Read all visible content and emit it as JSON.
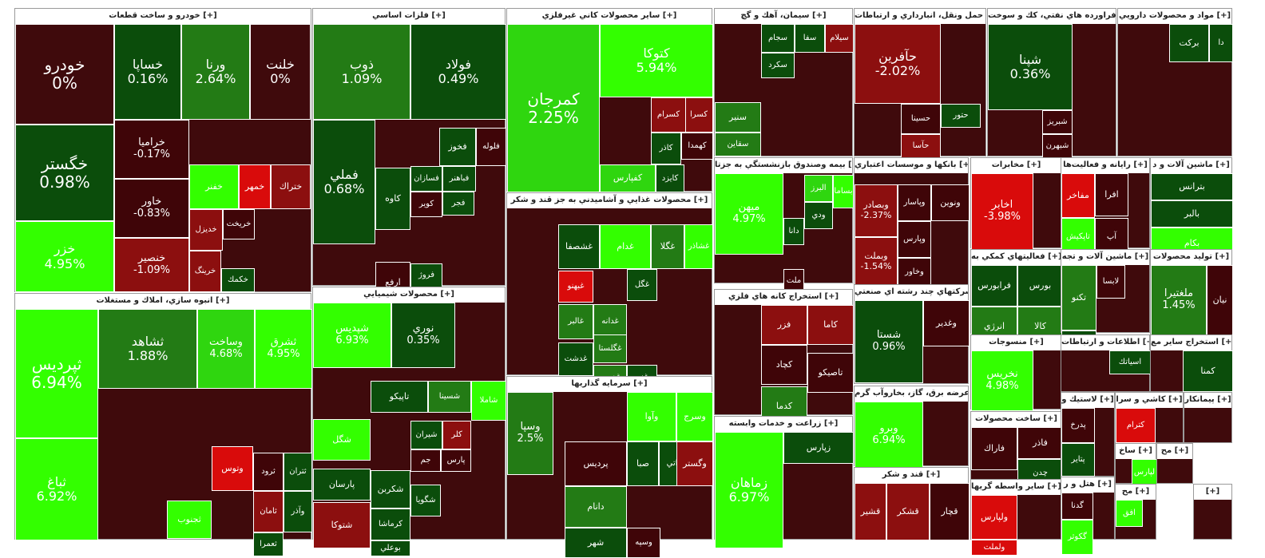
{
  "colors": {
    "neg_strong": "#d90b0b",
    "neg_mid": "#8c0f0f",
    "neg_dark": "#3f0508",
    "flat": "#3f0a0c",
    "pos_dark": "#0b4d0b",
    "pos_mid": "#237b15",
    "pos_light": "#2fd60f",
    "pos_bright": "#33ff00"
  },
  "sectors": [
    {
      "name": "خودرو و ساخت قطعات [+]",
      "tiles": [
        {
          "s": "خودرو",
          "c": "0%",
          "col": "flat"
        },
        {
          "s": "خگستر",
          "c": "0.98%",
          "col": "pos_dark"
        },
        {
          "s": "خزر",
          "c": "4.95%",
          "col": "pos_bright"
        },
        {
          "s": "خساپا",
          "c": "0.16%",
          "col": "pos_dark"
        },
        {
          "s": "ورنا",
          "c": "2.64%",
          "col": "pos_mid"
        },
        {
          "s": "خلنت",
          "c": "0%",
          "col": "flat"
        },
        {
          "s": "خراميا",
          "c": "-0.17%",
          "col": "neg_dark"
        },
        {
          "s": "خاور",
          "c": "-0.83%",
          "col": "neg_dark"
        },
        {
          "s": "خنصير",
          "c": "-1.09%",
          "col": "neg_mid"
        },
        {
          "s": "خفنر",
          "c": "",
          "col": "pos_bright"
        },
        {
          "s": "خمهر",
          "c": "",
          "col": "neg_strong"
        },
        {
          "s": "ختراك",
          "c": "",
          "col": "neg_mid"
        },
        {
          "s": "خديزل",
          "c": "",
          "col": "neg_mid"
        },
        {
          "s": "خريخت",
          "c": "",
          "col": "neg_dark"
        },
        {
          "s": "خرينگ",
          "c": "",
          "col": "neg_mid"
        },
        {
          "s": "خكمك",
          "c": "",
          "col": "pos_dark"
        }
      ]
    },
    {
      "name": "فلزات اساسي [+]",
      "tiles": [
        {
          "s": "ذوب",
          "c": "1.09%",
          "col": "pos_mid"
        },
        {
          "s": "فولاد",
          "c": "0.49%",
          "col": "pos_dark"
        },
        {
          "s": "فملي",
          "c": "0.68%",
          "col": "pos_dark"
        },
        {
          "s": "كاوه",
          "c": "",
          "col": "pos_dark"
        },
        {
          "s": "فخوز",
          "c": "",
          "col": "pos_dark"
        },
        {
          "s": "فلوله",
          "c": "",
          "col": "neg_dark"
        },
        {
          "s": "فسازان",
          "c": "",
          "col": "pos_dark"
        },
        {
          "s": "فباهنر",
          "c": "",
          "col": "pos_dark"
        },
        {
          "s": "ارفع",
          "c": "",
          "col": "neg_dark"
        },
        {
          "s": "فروژ",
          "c": "",
          "col": "pos_dark"
        },
        {
          "s": "كوير",
          "c": "",
          "col": "neg_dark"
        },
        {
          "s": "فجر",
          "c": "",
          "col": "pos_dark"
        }
      ]
    },
    {
      "name": "ساير محصولات كاني غيرفلزي [+]",
      "tiles": [
        {
          "s": "كمرجان",
          "c": "2.25%",
          "col": "pos_light"
        },
        {
          "s": "كتوكا",
          "c": "5.94%",
          "col": "pos_bright"
        },
        {
          "s": "كسرا",
          "c": "",
          "col": "neg_mid"
        },
        {
          "s": "كسرام",
          "c": "",
          "col": "neg_mid"
        },
        {
          "s": "كهمدا",
          "c": "",
          "col": "neg_dark"
        },
        {
          "s": "كاذر",
          "c": "",
          "col": "pos_dark"
        },
        {
          "s": "كفپارس",
          "c": "",
          "col": "pos_light"
        },
        {
          "s": "كايزد",
          "c": "",
          "col": "pos_dark"
        }
      ]
    },
    {
      "name": "سيمان، آهك و گچ [+]",
      "tiles": [
        {
          "s": "سيلام",
          "c": "",
          "col": "neg_mid"
        },
        {
          "s": "سفا",
          "c": "",
          "col": "pos_dark"
        },
        {
          "s": "سجام",
          "c": "",
          "col": "pos_dark"
        },
        {
          "s": "سكرد",
          "c": "",
          "col": "pos_dark"
        },
        {
          "s": "سنير",
          "c": "",
          "col": "pos_mid"
        },
        {
          "s": "سقاين",
          "c": "",
          "col": "pos_mid"
        }
      ]
    },
    {
      "name": "حمل ونقل، انبارداري و ارتباطات [+]",
      "tiles": [
        {
          "s": "حآفرين",
          "c": "-2.02%",
          "col": "neg_mid"
        },
        {
          "s": "حسينا",
          "c": "",
          "col": "neg_dark"
        },
        {
          "s": "حآسا",
          "c": "",
          "col": "neg_mid"
        },
        {
          "s": "حتور",
          "c": "",
          "col": "pos_dark"
        }
      ]
    },
    {
      "name": "فراورده هاي نفتي، كك و سوخت [+]",
      "tiles": [
        {
          "s": "شپنا",
          "c": "0.36%",
          "col": "pos_dark"
        },
        {
          "s": "شبريز",
          "c": "",
          "col": "neg_dark"
        },
        {
          "s": "شبهرن",
          "c": "",
          "col": "neg_dark"
        }
      ]
    },
    {
      "name": "مواد و محصولات دارويي [+]",
      "tiles": [
        {
          "s": "بركت",
          "c": "",
          "col": "pos_dark"
        },
        {
          "s": "دا",
          "c": "",
          "col": "pos_dark"
        }
      ]
    },
    {
      "name": "انبوه سازي، املاك و مستغلات [+]",
      "tiles": [
        {
          "s": "ثپرديس",
          "c": "6.94%",
          "col": "pos_bright"
        },
        {
          "s": "ثباغ",
          "c": "6.92%",
          "col": "pos_bright"
        },
        {
          "s": "ثشاهد",
          "c": "1.88%",
          "col": "pos_mid"
        },
        {
          "s": "وساخت",
          "c": "4.68%",
          "col": "pos_light"
        },
        {
          "s": "ثشرق",
          "c": "4.95%",
          "col": "pos_bright"
        },
        {
          "s": "ثتران",
          "c": "",
          "col": "pos_dark"
        },
        {
          "s": "ثرود",
          "c": "",
          "col": "neg_dark"
        },
        {
          "s": "وتوس",
          "c": "",
          "col": "neg_strong"
        },
        {
          "s": "ثامان",
          "c": "",
          "col": "neg_mid"
        },
        {
          "s": "وآذر",
          "c": "",
          "col": "pos_dark"
        },
        {
          "s": "ثجنوب",
          "c": "",
          "col": "pos_bright"
        },
        {
          "s": "ثعمرا",
          "c": "",
          "col": "pos_dark"
        }
      ]
    },
    {
      "name": "محصولات شيميايي [+]",
      "tiles": [
        {
          "s": "شپديس",
          "c": "6.93%",
          "col": "pos_bright"
        },
        {
          "s": "نوري",
          "c": "0.35%",
          "col": "pos_dark"
        },
        {
          "s": "تاپيكو",
          "c": "",
          "col": "pos_dark"
        },
        {
          "s": "شسينا",
          "c": "",
          "col": "pos_mid"
        },
        {
          "s": "شاملا",
          "c": "",
          "col": "pos_bright"
        },
        {
          "s": "شگل",
          "c": "",
          "col": "pos_bright"
        },
        {
          "s": "شيران",
          "c": "",
          "col": "pos_dark"
        },
        {
          "s": "كلر",
          "c": "",
          "col": "neg_mid"
        },
        {
          "s": "پارسان",
          "c": "",
          "col": "pos_dark"
        },
        {
          "s": "شكربن",
          "c": "",
          "col": "pos_dark"
        },
        {
          "s": "كرماشا",
          "c": "",
          "col": "pos_dark"
        },
        {
          "s": "بوعلي",
          "c": "",
          "col": "pos_dark"
        },
        {
          "s": "شگويا",
          "c": "",
          "col": "pos_dark"
        },
        {
          "s": "شتوكا",
          "c": "",
          "col": "neg_mid"
        },
        {
          "s": "جم",
          "c": "",
          "col": "neg_dark"
        },
        {
          "s": "پارس",
          "c": "",
          "col": "neg_dark"
        }
      ]
    },
    {
      "name": "محصولات غذايي و آشاميدني به جز قند و شكر [+]",
      "tiles": [
        {
          "s": "غشاذر",
          "c": "",
          "col": "pos_bright"
        },
        {
          "s": "غگلا",
          "c": "",
          "col": "pos_mid"
        },
        {
          "s": "غدام",
          "c": "",
          "col": "pos_bright"
        },
        {
          "s": "غشصفا",
          "c": "",
          "col": "pos_dark"
        },
        {
          "s": "غبهنو",
          "c": "",
          "col": "neg_strong"
        },
        {
          "s": "غگل",
          "c": "",
          "col": "pos_dark"
        },
        {
          "s": "غدانه",
          "c": "",
          "col": "pos_mid"
        },
        {
          "s": "غالبر",
          "c": "",
          "col": "pos_mid"
        },
        {
          "s": "غگلستا",
          "c": "",
          "col": "pos_mid"
        },
        {
          "s": "غديس",
          "c": "",
          "col": "pos_mid"
        },
        {
          "s": "غدشت",
          "c": "",
          "col": "pos_dark"
        },
        {
          "s": "غزر",
          "c": "",
          "col": "pos_dark"
        }
      ]
    },
    {
      "name": "سرمايه گذاريها [+]",
      "tiles": [
        {
          "s": "وسپا",
          "c": "2.5%",
          "col": "pos_mid"
        },
        {
          "s": "وآوا",
          "c": "",
          "col": "pos_bright"
        },
        {
          "s": "وسرج",
          "c": "",
          "col": "pos_bright"
        },
        {
          "s": "پرديس",
          "c": "",
          "col": "neg_dark"
        },
        {
          "s": "صبا",
          "c": "",
          "col": "pos_dark"
        },
        {
          "s": "واتي",
          "c": "",
          "col": "pos_dark"
        },
        {
          "s": "وگستر",
          "c": "",
          "col": "neg_mid"
        },
        {
          "s": "دانام",
          "c": "",
          "col": "pos_mid"
        },
        {
          "s": "وسپه",
          "c": "",
          "col": "neg_dark"
        },
        {
          "s": "شهر",
          "c": "",
          "col": "pos_dark"
        }
      ]
    },
    {
      "name": "بيمه وصندوق بازنشستگي به جزتا [+]",
      "tiles": [
        {
          "s": "ميهن",
          "c": "4.97%",
          "col": "pos_bright"
        },
        {
          "s": "بساما",
          "c": "",
          "col": "pos_bright"
        },
        {
          "s": "البرز",
          "c": "",
          "col": "pos_light"
        },
        {
          "s": "ودي",
          "c": "",
          "col": "pos_dark"
        },
        {
          "s": "دانا",
          "c": "",
          "col": "pos_dark"
        },
        {
          "s": "ملت",
          "c": "",
          "col": "neg_dark"
        }
      ]
    },
    {
      "name": "استخراج كانه هاي فلزي [+]",
      "tiles": [
        {
          "s": "كاما",
          "c": "",
          "col": "neg_mid"
        },
        {
          "s": "فزر",
          "c": "",
          "col": "neg_mid"
        },
        {
          "s": "كچاد",
          "c": "",
          "col": "neg_dark"
        },
        {
          "s": "كدما",
          "c": "",
          "col": "pos_mid"
        },
        {
          "s": "تاصيكو",
          "c": "",
          "col": "neg_dark"
        }
      ]
    },
    {
      "name": "زراعت و خدمات وابسته [+]",
      "tiles": [
        {
          "s": "زماهان",
          "c": "6.97%",
          "col": "pos_bright"
        },
        {
          "s": "زپارس",
          "c": "",
          "col": "pos_dark"
        }
      ]
    },
    {
      "name": "بانكها و موسسات اعتباري [+]",
      "tiles": [
        {
          "s": "ونوين",
          "c": "",
          "col": "neg_dark"
        },
        {
          "s": "وپاسار",
          "c": "",
          "col": "neg_dark"
        },
        {
          "s": "وپارس",
          "c": "",
          "col": "neg_dark"
        },
        {
          "s": "وخاور",
          "c": "",
          "col": "neg_dark"
        },
        {
          "s": "وبصادر",
          "c": "-2.37%",
          "col": "neg_mid"
        },
        {
          "s": "وبملت",
          "c": "-1.54%",
          "col": "neg_mid"
        }
      ]
    },
    {
      "name": "شركتهاي چند رشته اي صنعتي [+]",
      "tiles": [
        {
          "s": "شستا",
          "c": "0.96%",
          "col": "pos_dark"
        },
        {
          "s": "وغدير",
          "c": "",
          "col": "neg_dark"
        }
      ]
    },
    {
      "name": "عرضه برق، گاز، بخاروآب گرم [+]",
      "tiles": [
        {
          "s": "وبرو",
          "c": "6.94%",
          "col": "pos_bright"
        }
      ]
    },
    {
      "name": "قند و شكر [+]",
      "tiles": [
        {
          "s": "قشكر",
          "c": "",
          "col": "neg_mid"
        },
        {
          "s": "قشير",
          "c": "",
          "col": "neg_mid"
        },
        {
          "s": "قچار",
          "c": "",
          "col": "neg_dark"
        }
      ]
    },
    {
      "name": "مخابرات [+]",
      "tiles": [
        {
          "s": "اخابر",
          "c": "-3.98%",
          "col": "neg_strong"
        }
      ]
    },
    {
      "name": "فعاليتهاي كمكي به [+]",
      "tiles": [
        {
          "s": "فرابورس",
          "c": "",
          "col": "pos_dark"
        },
        {
          "s": "بورس",
          "c": "",
          "col": "pos_dark"
        },
        {
          "s": "انرژي",
          "c": "",
          "col": "pos_mid"
        },
        {
          "s": "كالا",
          "c": "",
          "col": "pos_mid"
        }
      ]
    },
    {
      "name": "منسوجات [+]",
      "tiles": [
        {
          "s": "نخريس",
          "c": "4.98%",
          "col": "pos_bright"
        }
      ]
    },
    {
      "name": "ساخت محصولات [+]",
      "tiles": [
        {
          "s": "فاذر",
          "c": "",
          "col": "neg_dark"
        },
        {
          "s": "فاراك",
          "c": "",
          "col": "neg_dark"
        },
        {
          "s": "چدن",
          "c": "",
          "col": "pos_dark"
        }
      ]
    },
    {
      "name": "ساير واسطه گريها [+]",
      "tiles": [
        {
          "s": "ولپارس",
          "c": "",
          "col": "neg_strong"
        },
        {
          "s": "ولملت",
          "c": "",
          "col": "neg_strong"
        }
      ]
    },
    {
      "name": "رايانه و فعاليت‌ها [+]",
      "tiles": [
        {
          "s": "افرا",
          "c": "",
          "col": "neg_dark"
        },
        {
          "s": "مفاخر",
          "c": "",
          "col": "neg_strong"
        },
        {
          "s": "آپ",
          "c": "",
          "col": "neg_dark"
        },
        {
          "s": "تاپكيش",
          "c": "",
          "col": "pos_bright"
        }
      ]
    },
    {
      "name": "ماشين آلات و تجه [+]",
      "tiles": [
        {
          "s": "تكنو",
          "c": "",
          "col": "pos_mid"
        },
        {
          "s": "لابسا",
          "c": "",
          "col": "neg_dark"
        },
        {
          "s": "لبوتان",
          "c": "",
          "col": "pos_dark"
        }
      ]
    },
    {
      "name": "اطلاعات و ارتباطات [+]",
      "tiles": [
        {
          "s": "اسياتك",
          "c": "",
          "col": "pos_dark"
        }
      ]
    },
    {
      "name": "لاستيك و [+]",
      "tiles": [
        {
          "s": "پدرخ",
          "c": "",
          "col": "neg_dark"
        },
        {
          "s": "پتاير",
          "c": "",
          "col": "pos_dark"
        }
      ]
    },
    {
      "name": "هتل و ر [+]",
      "tiles": [
        {
          "s": "گدنا",
          "c": "",
          "col": "neg_dark"
        },
        {
          "s": "گكوثر",
          "c": "",
          "col": "pos_bright"
        }
      ]
    },
    {
      "name": "ماشين آلات و د [+]",
      "tiles": [
        {
          "s": "بترانس",
          "c": "",
          "col": "pos_dark"
        },
        {
          "s": "بالبر",
          "c": "",
          "col": "pos_dark"
        },
        {
          "s": "بكام",
          "c": "",
          "col": "pos_bright"
        }
      ]
    },
    {
      "name": "توليد محصولات [+]",
      "tiles": [
        {
          "s": "ملغتيرا",
          "c": "1.45%",
          "col": "pos_mid"
        },
        {
          "s": "نيان",
          "c": "",
          "col": "neg_dark"
        }
      ]
    },
    {
      "name": "استخراج ساير مع [+]",
      "tiles": [
        {
          "s": "كمنا",
          "c": "",
          "col": "pos_dark"
        }
      ]
    },
    {
      "name": "كاشي و سرا [+]",
      "tiles": [
        {
          "s": "كترام",
          "c": "",
          "col": "neg_strong"
        }
      ]
    },
    {
      "name": "پيمانكار [+]",
      "tiles": []
    },
    {
      "name": "ساخ [+]",
      "tiles": [
        {
          "s": "لپارس",
          "c": "",
          "col": "pos_bright"
        }
      ]
    },
    {
      "name": "مح [+]",
      "tiles": []
    },
    {
      "name": "مح [+]",
      "tiles": [
        {
          "s": "افق",
          "c": "",
          "col": "pos_bright"
        }
      ]
    },
    {
      "name": "[+]",
      "tiles": []
    },
    {
      "name": "[+]",
      "tiles": []
    }
  ]
}
